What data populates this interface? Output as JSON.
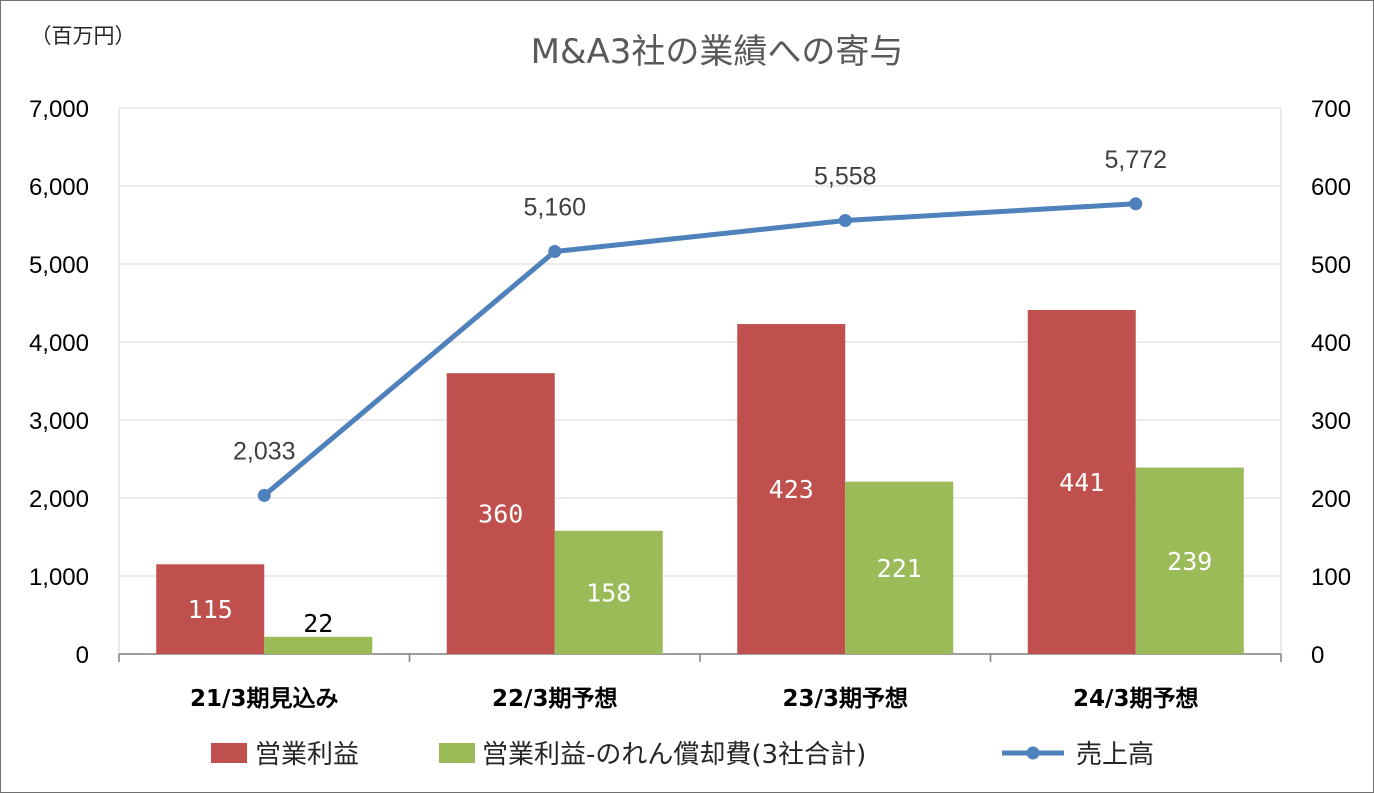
{
  "chart_data": {
    "type": "bar",
    "title": "M&A3社の業績への寄与",
    "unit_label": "（百万円）",
    "categories": [
      "21/3期見込み",
      "22/3期予想",
      "23/3期予想",
      "24/3期予想"
    ],
    "series": [
      {
        "name": "営業利益",
        "type": "bar",
        "axis": "right",
        "color": "#C0504D",
        "values": [
          115,
          360,
          423,
          441
        ],
        "labels": [
          "115",
          "360",
          "423",
          "441"
        ]
      },
      {
        "name": "営業利益-のれん償却費(3社合計)",
        "type": "bar",
        "axis": "right",
        "color": "#9BBB59",
        "values": [
          22,
          158,
          221,
          239
        ],
        "labels": [
          "22",
          "158",
          "221",
          "239"
        ]
      },
      {
        "name": "売上高",
        "type": "line",
        "axis": "left",
        "color": "#4F81BD",
        "values": [
          2033,
          5160,
          5558,
          5772
        ],
        "labels": [
          "2,033",
          "5,160",
          "5,558",
          "5,772"
        ]
      }
    ],
    "y_left": {
      "ylim": [
        0,
        7000
      ],
      "ticks": [
        0,
        1000,
        2000,
        3000,
        4000,
        5000,
        6000,
        7000
      ],
      "tick_labels": [
        "0",
        "1,000",
        "2,000",
        "3,000",
        "4,000",
        "5,000",
        "6,000",
        "7,000"
      ]
    },
    "y_right": {
      "ylim": [
        0,
        700
      ],
      "ticks": [
        0,
        100,
        200,
        300,
        400,
        500,
        600,
        700
      ],
      "tick_labels": [
        "0",
        "100",
        "200",
        "300",
        "400",
        "500",
        "600",
        "700"
      ]
    },
    "grid": true,
    "legend_position": "bottom"
  }
}
